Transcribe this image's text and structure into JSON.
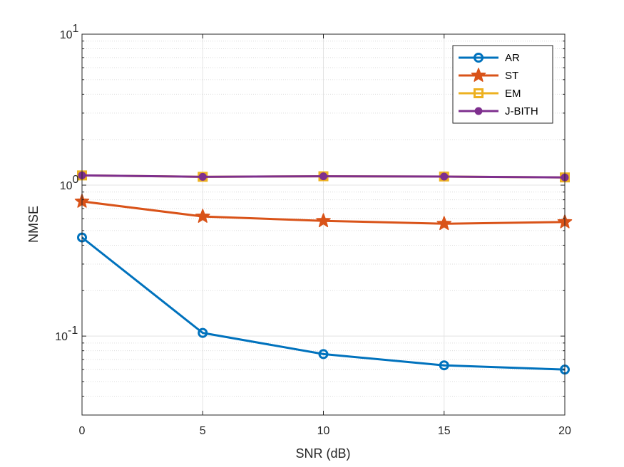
{
  "chart_data": {
    "type": "line",
    "title": "",
    "xlabel": "SNR (dB)",
    "ylabel": "NMSE",
    "yscale": "log",
    "x": [
      0,
      5,
      10,
      15,
      20
    ],
    "xlim": [
      0,
      20
    ],
    "ylim": [
      0.03,
      10
    ],
    "xticks": [
      0,
      5,
      10,
      15,
      20
    ],
    "xtick_labels": [
      "0",
      "5",
      "10",
      "15",
      "20"
    ],
    "ytick_labels": [
      {
        "base": "10",
        "exp": "-1",
        "value": 0.1
      },
      {
        "base": "10",
        "exp": "0",
        "value": 1
      },
      {
        "base": "10",
        "exp": "1",
        "value": 10
      }
    ],
    "grid": true,
    "legend_position": "top-right",
    "series": [
      {
        "name": "AR",
        "color": "#0072BD",
        "marker": "circle",
        "values": [
          0.45,
          0.105,
          0.076,
          0.064,
          0.06
        ]
      },
      {
        "name": "ST",
        "color": "#D95319",
        "marker": "star",
        "values": [
          0.78,
          0.62,
          0.58,
          0.555,
          0.57
        ]
      },
      {
        "name": "EM",
        "color": "#EDB120",
        "marker": "square",
        "values": [
          1.16,
          1.135,
          1.145,
          1.14,
          1.125
        ]
      },
      {
        "name": "J-BITH",
        "color": "#7E2F8E",
        "marker": "dot",
        "values": [
          1.16,
          1.135,
          1.145,
          1.14,
          1.125
        ]
      }
    ]
  }
}
